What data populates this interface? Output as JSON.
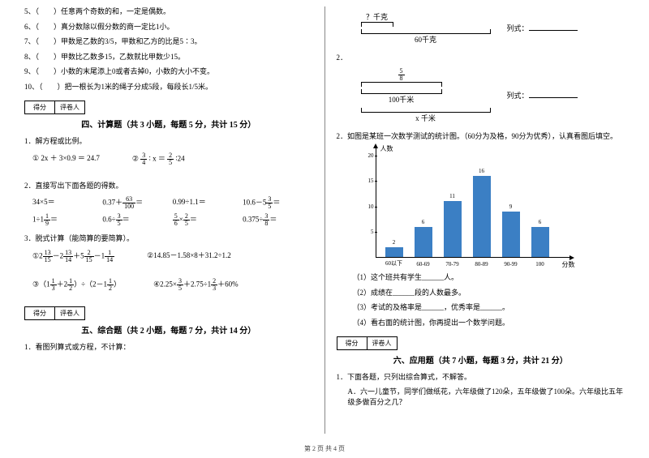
{
  "left": {
    "tf": [
      "5、（　　）任意两个奇数的和，一定是偶数。",
      "6、（　　）真分数除以假分数的商一定比1小。",
      "7、（　　）甲数是乙数的3/5，甲数和乙方的比是5∶3。",
      "8、（　　）甲数比乙数多15，乙数就比甲数少15。",
      "9、（　　）小数的末尾添上0或者去掉0，小数的大小不变。",
      "10、（　　）把一根长为1米的绳子分成5段，每段长1/5米。"
    ],
    "score": {
      "a": "得分",
      "b": "评卷人"
    },
    "sec4_title": "四、计算题（共 3 小题，每题 5 分，共计 15 分）",
    "sec4_q1": "1．解方程或比例。",
    "sec4_q1_a": "① 2x ＋ 3×0.9 ＝ 24.7",
    "sec4_q1_b_pre": "②",
    "sec4_q1_b_mid": "∶ x ＝",
    "sec4_q1_b_end": "∶24",
    "sec4_q2": "2．直接写出下面各题的得数。",
    "grid": [
      [
        "34×5＝",
        "0.37＋",
        "0.99÷1.1＝",
        "10.6－5"
      ],
      [
        "1÷1",
        "0.6÷",
        "",
        "0.375÷"
      ],
      [
        "",
        "",
        "×",
        ""
      ]
    ],
    "sec4_q3": "3．脱式计算（能简算的要简算）。",
    "sec4_q3_a": "①2",
    "sec4_q3_b": "②14.85－1.58×8＋31.2÷1.2",
    "sec4_q3_c": "③（1",
    "sec4_q3_c_mid": "＋2",
    "sec4_q3_c_end": "）÷（2－1",
    "sec4_q3_d": "④2.25×",
    "sec4_q3_d_mid": "＋2.75÷1",
    "sec4_q3_d_end": "＋60%",
    "sec5_title": "五、综合题（共 2 小题，每题 7 分，共计 14 分）",
    "sec5_q1": "1．看图列算式或方程，不计算："
  },
  "right": {
    "diag1": {
      "top": "？千克",
      "bottom": "60千克",
      "side": "列式："
    },
    "q2": "2．",
    "diag2": {
      "top_frac_n": "5",
      "top_frac_d": "8",
      "bottom": "100千米",
      "under": "x 千米",
      "side": "列式："
    },
    "sec2": "2．如图是某班一次数学测试的统计图。（60分为及格，90分为优秀），认真看图后填空。",
    "chart": {
      "y_title": "人数",
      "x_title": "分数",
      "y_ticks": [
        5,
        10,
        15,
        20
      ],
      "y_max": 20,
      "categories": [
        "60以下",
        "60-69",
        "70-79",
        "80-89",
        "90-99",
        "100"
      ],
      "values": [
        2,
        6,
        11,
        16,
        9,
        6
      ],
      "bar_color": "#3b7fc4",
      "bg": "#ffffff"
    },
    "sub": [
      "（1）这个班共有学生______人。",
      "（2）成绩在______段的人数最多。",
      "（3）考试的及格率是______，优秀率是______。",
      "（4）看右面的统计图，你再提出一个数学问题。"
    ],
    "score": {
      "a": "得分",
      "b": "评卷人"
    },
    "sec6_title": "六、应用题（共 7 小题，每题 3 分，共计 21 分）",
    "sec6_q1": "1．下面各题，只列出综合算式，不解答。",
    "sec6_q1a": "A．六一儿童节，同学们做纸花，六年级做了120朵，五年级做了100朵。六年级比五年级多做百分之几？"
  },
  "footer": "第 2 页 共 4 页"
}
